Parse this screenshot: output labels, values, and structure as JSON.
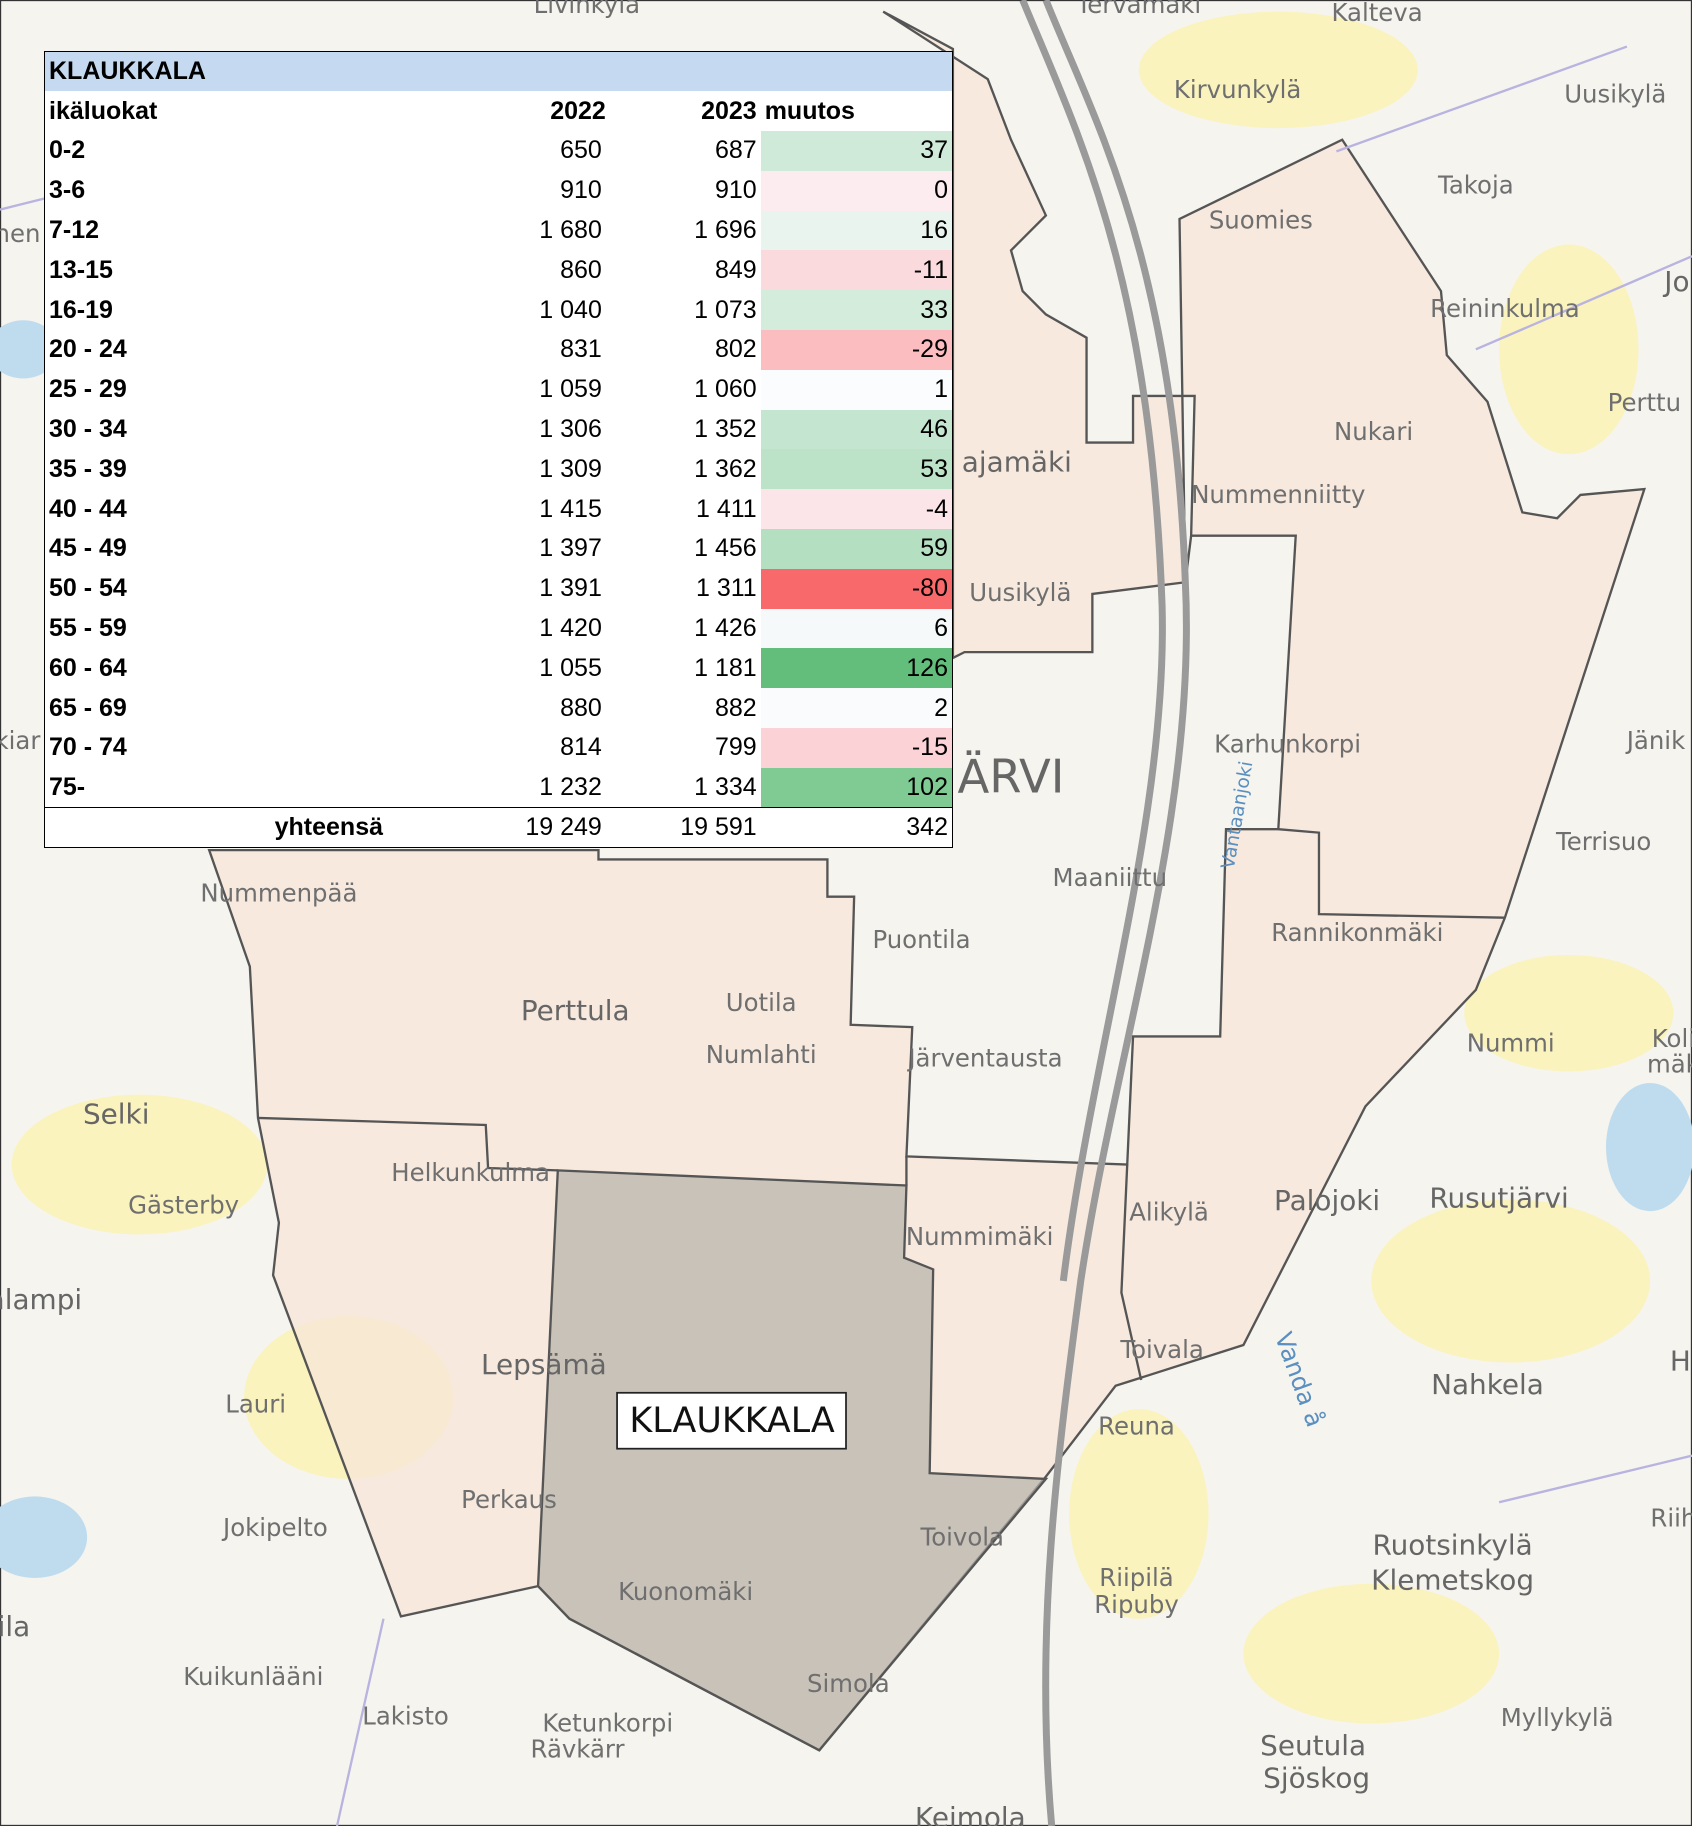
{
  "table": {
    "title": "KLAUKKALA",
    "header": [
      "ikäluokat",
      "2022",
      "2023",
      "muutos"
    ],
    "rows": [
      [
        "0-2",
        "650",
        "687",
        37
      ],
      [
        "3-6",
        "910",
        "910",
        0
      ],
      [
        "7-12",
        "1 680",
        "1 696",
        16
      ],
      [
        "13-15",
        "860",
        "849",
        -11
      ],
      [
        "16-19",
        "1 040",
        "1 073",
        33
      ],
      [
        "20 - 24",
        "831",
        "802",
        -29
      ],
      [
        "25 - 29",
        "1 059",
        "1 060",
        1
      ],
      [
        "30 - 34",
        "1 306",
        "1 352",
        46
      ],
      [
        "35 - 39",
        "1 309",
        "1 362",
        53
      ],
      [
        "40 - 44",
        "1 415",
        "1 411",
        -4
      ],
      [
        "45 - 49",
        "1 397",
        "1 456",
        59
      ],
      [
        "50 - 54",
        "1 391",
        "1 311",
        -80
      ],
      [
        "55 - 59",
        "1 420",
        "1 426",
        6
      ],
      [
        "60 - 64",
        "1 055",
        "1 181",
        126
      ],
      [
        "65 - 69",
        "880",
        "882",
        2
      ],
      [
        "70 - 74",
        "814",
        "799",
        -15
      ],
      [
        "75-",
        "1 232",
        "1 334",
        102
      ]
    ],
    "total": [
      "yhteensä",
      "19 249",
      "19 591",
      342
    ],
    "positive_color": "#63be7b",
    "negative_color": "#f8696b"
  },
  "map": {
    "region_label": "KLAUKKALA",
    "places": [
      "Livinkylä",
      "Tervamäki",
      "Kalteva",
      "Kirvunkylä",
      "Uusikylä",
      "Takoja",
      "Suomies",
      "Reininkulma",
      "Perttu",
      "Nukari",
      "Nummenniitty",
      "ajamäki",
      "Uusikylä",
      "Karhunkorpi",
      "Jänik",
      "ÄRVI",
      "Maaniittu",
      "Terrisuo",
      "Nummenpää",
      "Puontila",
      "Rannikonmäki",
      "Perttula",
      "Uotila",
      "Numlahti",
      "Järventausta",
      "Nummi",
      "Koli",
      "mäk",
      "Selki",
      "Gästerby",
      "Helkunkulma",
      "Nummimäki",
      "Alikylä",
      "Palojoki",
      "Rusutjärvi",
      "alampi",
      "Vanda å",
      "Toivala",
      "Lepsämä",
      "Nahkela",
      "Lauri",
      "Reuna",
      "Jokipelto",
      "Perkaus",
      "Toivola",
      "Riih",
      "Ruotsinkylä",
      "Klemetskog",
      "Riipilä",
      "Ripuby",
      "Kuonomäki",
      "ila",
      "Kuikunlääni",
      "Simola",
      "Lakisto",
      "Ketunkorpi",
      "Rävkärr",
      "Myllykylä",
      "Seutula",
      "Sjöskog",
      "Keimola",
      "Vantaanjoki",
      "Jo",
      "nen",
      "kiar",
      "H"
    ]
  }
}
